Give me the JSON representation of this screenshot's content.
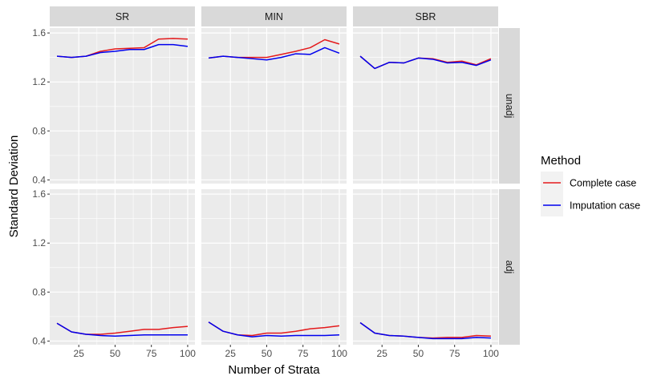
{
  "chart_data": {
    "type": "line",
    "xlabel": "Number of Strata",
    "ylabel": "Standard Deviation",
    "xlim": [
      5,
      105
    ],
    "ylim": [
      0.37,
      1.64
    ],
    "x_ticks": [
      25,
      50,
      75,
      100
    ],
    "y_ticks": [
      0.4,
      0.8,
      1.2,
      1.6
    ],
    "y_tick_labels": [
      "0.4",
      "0.8",
      "1.2",
      "1.6"
    ],
    "grid": true,
    "legend": {
      "title": "Method",
      "position": "right",
      "entries": [
        {
          "label": "Complete case",
          "color": "#e41a1c"
        },
        {
          "label": "Imputation case",
          "color": "#0000ee"
        }
      ]
    },
    "columns": [
      "SR",
      "MIN",
      "SBR"
    ],
    "rows": [
      "unadj",
      "adj"
    ],
    "x": [
      10,
      20,
      30,
      40,
      50,
      60,
      70,
      80,
      90,
      100
    ],
    "panels": [
      {
        "column": "SR",
        "row": "unadj",
        "series": [
          {
            "name": "Complete case",
            "values": [
              1.41,
              1.4,
              1.41,
              1.45,
              1.47,
              1.475,
              1.48,
              1.55,
              1.555,
              1.55
            ]
          },
          {
            "name": "Imputation case",
            "values": [
              1.41,
              1.4,
              1.41,
              1.44,
              1.45,
              1.465,
              1.465,
              1.505,
              1.505,
              1.49
            ]
          }
        ]
      },
      {
        "column": "MIN",
        "row": "unadj",
        "series": [
          {
            "name": "Complete case",
            "values": [
              1.395,
              1.41,
              1.4,
              1.4,
              1.4,
              1.425,
              1.45,
              1.48,
              1.545,
              1.51
            ]
          },
          {
            "name": "Imputation case",
            "values": [
              1.395,
              1.41,
              1.4,
              1.39,
              1.38,
              1.4,
              1.43,
              1.425,
              1.48,
              1.435
            ]
          }
        ]
      },
      {
        "column": "SBR",
        "row": "unadj",
        "series": [
          {
            "name": "Complete case",
            "values": [
              1.41,
              1.31,
              1.36,
              1.355,
              1.395,
              1.39,
              1.36,
              1.37,
              1.34,
              1.39
            ]
          },
          {
            "name": "Imputation case",
            "values": [
              1.41,
              1.31,
              1.36,
              1.355,
              1.395,
              1.385,
              1.355,
              1.36,
              1.335,
              1.38
            ]
          }
        ]
      },
      {
        "column": "SR",
        "row": "adj",
        "series": [
          {
            "name": "Complete case",
            "values": [
              0.545,
              0.475,
              0.455,
              0.455,
              0.465,
              0.48,
              0.495,
              0.495,
              0.51,
              0.52
            ]
          },
          {
            "name": "Imputation case",
            "values": [
              0.545,
              0.475,
              0.455,
              0.445,
              0.44,
              0.445,
              0.45,
              0.45,
              0.45,
              0.45
            ]
          }
        ]
      },
      {
        "column": "MIN",
        "row": "adj",
        "series": [
          {
            "name": "Complete case",
            "values": [
              0.555,
              0.48,
              0.45,
              0.445,
              0.465,
              0.465,
              0.48,
              0.5,
              0.51,
              0.525
            ]
          },
          {
            "name": "Imputation case",
            "values": [
              0.555,
              0.48,
              0.45,
              0.435,
              0.445,
              0.44,
              0.445,
              0.445,
              0.445,
              0.45
            ]
          }
        ]
      },
      {
        "column": "SBR",
        "row": "adj",
        "series": [
          {
            "name": "Complete case",
            "values": [
              0.55,
              0.465,
              0.445,
              0.44,
              0.43,
              0.425,
              0.43,
              0.43,
              0.445,
              0.44
            ]
          },
          {
            "name": "Imputation case",
            "values": [
              0.55,
              0.465,
              0.445,
              0.44,
              0.43,
              0.42,
              0.42,
              0.42,
              0.43,
              0.425
            ]
          }
        ]
      }
    ]
  }
}
